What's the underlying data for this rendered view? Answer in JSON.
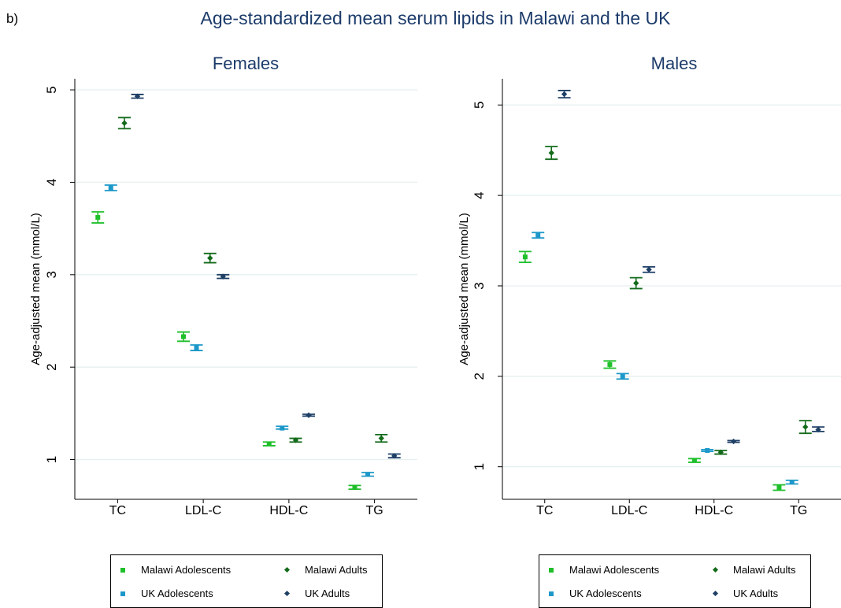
{
  "header": {
    "panel_label": "b)",
    "title": "Age-standardized mean serum lipids in Malawi and the UK"
  },
  "colors": {
    "malawi_adolescents": "#1fbf2a",
    "uk_adolescents": "#1d98c9",
    "malawi_adults": "#136b1a",
    "uk_adults": "#1e3f66",
    "gridline": "#e6efef"
  },
  "chart_data": [
    {
      "type": "scatter",
      "title": "Females",
      "ylabel": "Age-adjusted mean (mmol/L)",
      "xlabel": "",
      "ylim": [
        0.57,
        5.12
      ],
      "yticks": [
        1,
        2,
        3,
        4,
        5
      ],
      "grid": true,
      "legend_position": "bottom",
      "categories": [
        "TC",
        "LDL-C",
        "HDL-C",
        "TG"
      ],
      "series": [
        {
          "name": "Malawi Adolescents",
          "marker": "square",
          "values": [
            3.62,
            2.33,
            1.17,
            0.7
          ],
          "lower": [
            3.56,
            2.28,
            1.15,
            0.68
          ],
          "upper": [
            3.68,
            2.38,
            1.19,
            0.72
          ]
        },
        {
          "name": "UK Adolescents",
          "marker": "square",
          "values": [
            3.94,
            2.21,
            1.34,
            0.84
          ],
          "lower": [
            3.91,
            2.18,
            1.33,
            0.82
          ],
          "upper": [
            3.97,
            2.24,
            1.36,
            0.86
          ]
        },
        {
          "name": "Malawi Adults",
          "marker": "diamond",
          "values": [
            4.64,
            3.18,
            1.21,
            1.23
          ],
          "lower": [
            4.58,
            3.13,
            1.19,
            1.19
          ],
          "upper": [
            4.7,
            3.23,
            1.23,
            1.27
          ]
        },
        {
          "name": "UK Adults",
          "marker": "diamond",
          "values": [
            4.93,
            2.98,
            1.48,
            1.04
          ],
          "lower": [
            4.91,
            2.96,
            1.47,
            1.02
          ],
          "upper": [
            4.95,
            3.0,
            1.49,
            1.06
          ]
        }
      ]
    },
    {
      "type": "scatter",
      "title": "Males",
      "ylabel": "Age-adjusted mean (mmol/L)",
      "xlabel": "",
      "ylim": [
        0.64,
        5.29
      ],
      "yticks": [
        1,
        2,
        3,
        4,
        5
      ],
      "grid": true,
      "legend_position": "bottom",
      "categories": [
        "TC",
        "LDL-C",
        "HDL-C",
        "TG"
      ],
      "series": [
        {
          "name": "Malawi Adolescents",
          "marker": "square",
          "values": [
            3.32,
            2.13,
            1.07,
            0.77
          ],
          "lower": [
            3.26,
            2.09,
            1.05,
            0.74
          ],
          "upper": [
            3.38,
            2.17,
            1.09,
            0.8
          ]
        },
        {
          "name": "UK Adolescents",
          "marker": "square",
          "values": [
            3.56,
            2.0,
            1.18,
            0.83
          ],
          "lower": [
            3.53,
            1.97,
            1.17,
            0.81
          ],
          "upper": [
            3.59,
            2.03,
            1.19,
            0.85
          ]
        },
        {
          "name": "Malawi Adults",
          "marker": "diamond",
          "values": [
            4.47,
            3.03,
            1.16,
            1.44
          ],
          "lower": [
            4.4,
            2.97,
            1.14,
            1.37
          ],
          "upper": [
            4.54,
            3.09,
            1.18,
            1.51
          ]
        },
        {
          "name": "UK Adults",
          "marker": "diamond",
          "values": [
            5.12,
            3.18,
            1.28,
            1.41
          ],
          "lower": [
            5.08,
            3.15,
            1.27,
            1.39
          ],
          "upper": [
            5.16,
            3.21,
            1.29,
            1.44
          ]
        }
      ]
    }
  ]
}
